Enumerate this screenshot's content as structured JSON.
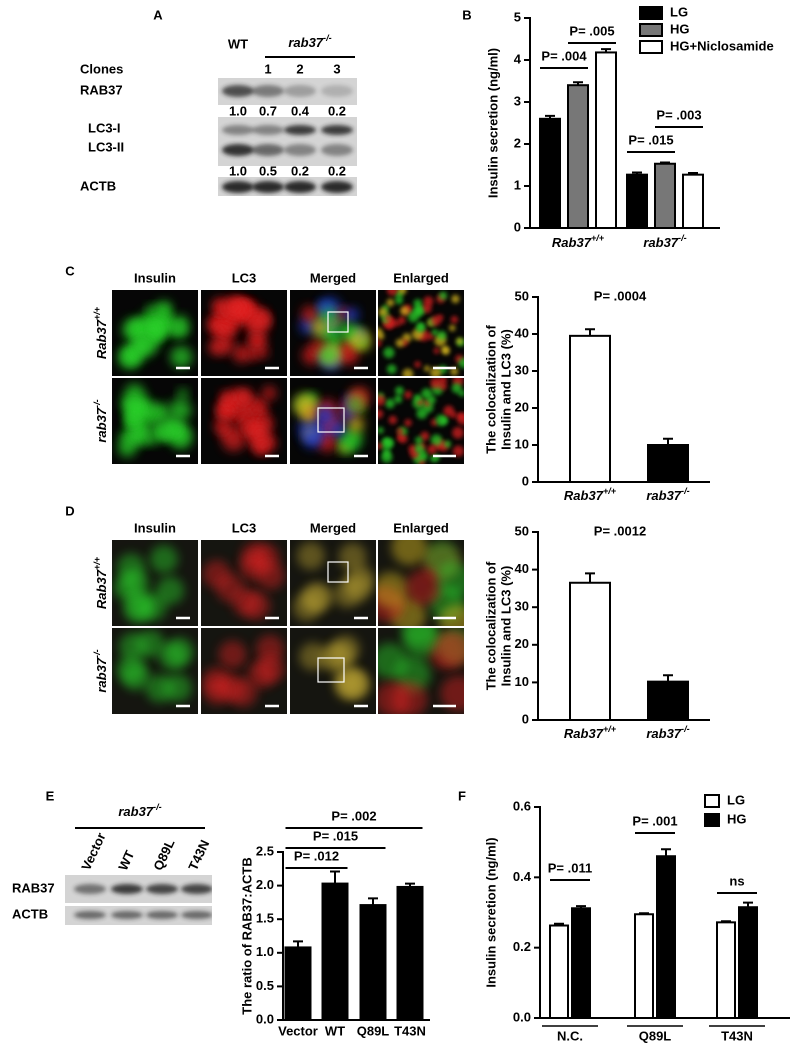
{
  "panel_letters": [
    "A",
    "B",
    "C",
    "D",
    "E",
    "F"
  ],
  "panel_a": {
    "wt": "WT",
    "genotype": "rab37-/-",
    "clones_label": "Clones",
    "clones": [
      "1",
      "2",
      "3"
    ],
    "rows": [
      "RAB37",
      "LC3-I",
      "LC3-II",
      "ACTB"
    ],
    "quant": [
      [
        "1.0",
        "0.7",
        "0.4",
        "0.2"
      ],
      [
        "1.0",
        "0.5",
        "0.2",
        "0.2"
      ]
    ]
  },
  "panel_c_images": {
    "columns": [
      "Insulin",
      "LC3",
      "Merged",
      "Enlarged"
    ],
    "rows": [
      "Rab37+/+",
      "rab37-/-"
    ]
  },
  "panel_d_images": {
    "columns": [
      "Insulin",
      "LC3",
      "Merged",
      "Enlarged"
    ],
    "rows": [
      "Rab37+/+",
      "rab37-/-"
    ]
  },
  "panel_e_blot": {
    "genotype": "rab37-/-",
    "lanes": [
      "Vector",
      "WT",
      "Q89L",
      "T43N"
    ],
    "rows": [
      "RAB37",
      "ACTB"
    ]
  },
  "chart_data": [
    {
      "type": "bar",
      "y_label": "Insulin secretion (ng/ml)",
      "categories": [
        "Rab37+/+",
        "rab37-/-"
      ],
      "series": [
        {
          "name": "LG",
          "color": "#000000",
          "values": [
            2.6,
            1.27
          ],
          "errors": [
            0.07,
            0.05
          ]
        },
        {
          "name": "HG",
          "color": "#777777",
          "values": [
            3.4,
            1.53
          ],
          "errors": [
            0.07,
            0.03
          ]
        },
        {
          "name": "HG+Niclosamide",
          "color": "#ffffff",
          "values": [
            4.18,
            1.27
          ],
          "errors": [
            0.08,
            0.04
          ]
        }
      ],
      "ylim": [
        0,
        5
      ],
      "yticks": [
        0,
        1,
        2,
        3,
        4,
        5
      ],
      "annotations": [
        "P= .004",
        "P= .005",
        "P= .015",
        "P= .003"
      ]
    },
    {
      "type": "bar",
      "y_label": [
        "The colocalization of",
        "Insulin and LC3 (%)"
      ],
      "categories": [
        "Rab37+/+",
        "rab37-/-"
      ],
      "values": [
        39.5,
        10
      ],
      "errors": [
        1.8,
        1.7
      ],
      "colors": [
        "#ffffff",
        "#000000"
      ],
      "ylim": [
        0,
        50
      ],
      "yticks": [
        0,
        10,
        20,
        30,
        40,
        50
      ],
      "annotations": [
        "P= .0004"
      ]
    },
    {
      "type": "bar",
      "y_label": [
        "The colocalization of",
        "Insulin and LC3 (%)"
      ],
      "categories": [
        "Rab37+/+",
        "rab37-/-"
      ],
      "values": [
        36.5,
        10.2
      ],
      "errors": [
        2.5,
        1.7
      ],
      "colors": [
        "#ffffff",
        "#000000"
      ],
      "ylim": [
        0,
        50
      ],
      "yticks": [
        0,
        10,
        20,
        30,
        40,
        50
      ],
      "annotations": [
        "P= .0012"
      ]
    },
    {
      "type": "bar",
      "y_label": "The ratio of RAB37:ACTB",
      "categories": [
        "Vector",
        "WT",
        "Q89L",
        "T43N"
      ],
      "values": [
        1.08,
        2.03,
        1.71,
        1.98
      ],
      "errors": [
        0.09,
        0.18,
        0.1,
        0.05
      ],
      "color": "#000000",
      "ylim": [
        0,
        2.5
      ],
      "yticks": [
        {
          "value": 0,
          "label": "0.0"
        },
        {
          "value": 0.5,
          "label": "0.5"
        },
        {
          "value": 1,
          "label": "1.0"
        },
        {
          "value": 1.5,
          "label": "1.5"
        },
        {
          "value": 2,
          "label": "2.0"
        },
        {
          "value": 2.5,
          "label": "2.5"
        }
      ],
      "annotations": [
        "P= .012",
        "P= .015",
        "P= .002"
      ]
    },
    {
      "type": "bar",
      "y_label": "Insulin secretion (ng/ml)",
      "categories": [
        "N.C.",
        "Q89L",
        "T43N"
      ],
      "series": [
        {
          "name": "LG",
          "color": "#ffffff",
          "values": [
            0.263,
            0.295,
            0.272
          ],
          "errors": [
            0.005,
            0.003,
            0.003
          ]
        },
        {
          "name": "HG",
          "color": "#000000",
          "values": [
            0.312,
            0.46,
            0.315
          ],
          "errors": [
            0.006,
            0.02,
            0.013
          ]
        }
      ],
      "ylim": [
        0,
        0.6
      ],
      "yticks": [
        {
          "value": 0,
          "label": "0.0"
        },
        {
          "value": 0.2,
          "label": "0.2"
        },
        {
          "value": 0.4,
          "label": "0.4"
        },
        {
          "value": 0.6,
          "label": "0.6"
        }
      ],
      "annotations": [
        "P= .011",
        "P= .001",
        "ns"
      ]
    }
  ]
}
